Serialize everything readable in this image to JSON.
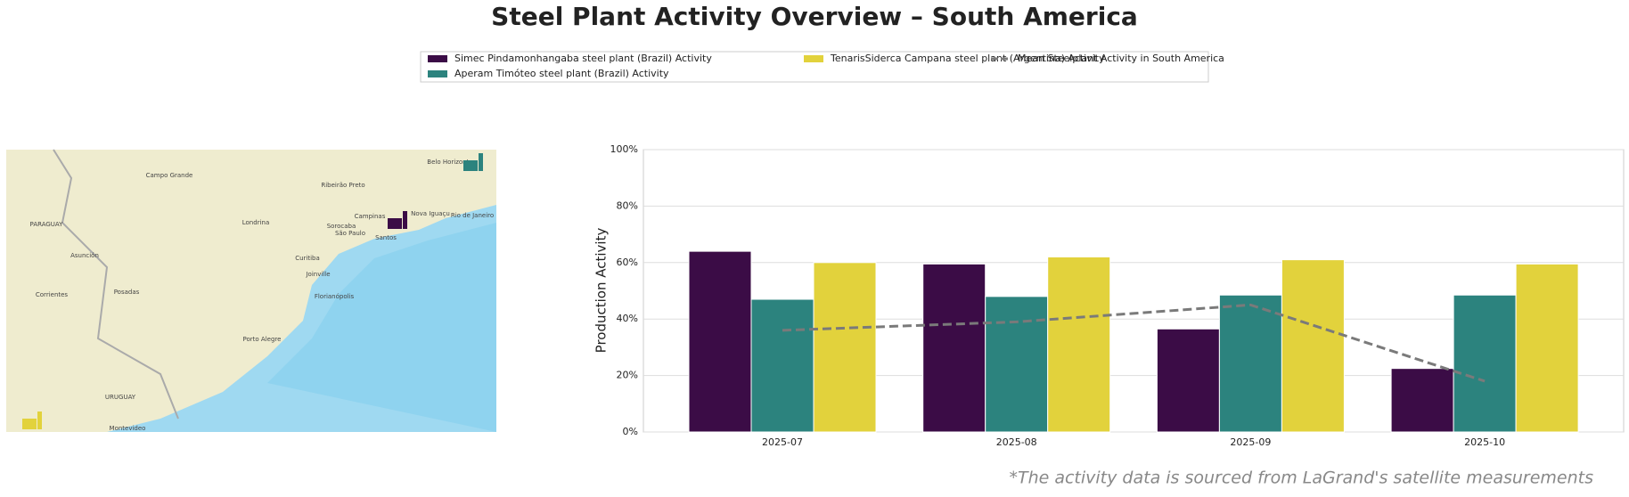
{
  "chart_data": {
    "type": "bar",
    "title": "Steel Plant Activity Overview – South America",
    "y_label": "Production Activity",
    "note": "*The activity data is sourced from LaGrand's satellite measurements",
    "categories": [
      "2025-07",
      "2025-08",
      "2025-09",
      "2025-10"
    ],
    "series": [
      {
        "name": "Simec Pindamonhangaba steel plant (Brazil) Activity",
        "color": "#3b0c46",
        "values": [
          64,
          59.5,
          36.5,
          22.5
        ]
      },
      {
        "name": "Aperam Timóteo steel plant (Brazil) Activity",
        "color": "#2c837e",
        "values": [
          47,
          48,
          48.5,
          48.5
        ]
      },
      {
        "name": "TenarisSiderca Campana steel plant (Argentina) Activity",
        "color": "#e2d23c",
        "values": [
          60,
          62,
          61,
          59.5
        ]
      },
      {
        "name": "Mean Steelplant Activity in South America",
        "color": "#7a7a7a",
        "type": "line",
        "values": [
          36,
          39,
          45,
          18
        ]
      }
    ],
    "ylim": [
      0,
      100
    ],
    "yticks": [
      {
        "value": 0,
        "label": "0%"
      },
      {
        "value": 20,
        "label": "20%"
      },
      {
        "value": 40,
        "label": "40%"
      },
      {
        "value": 60,
        "label": "60%"
      },
      {
        "value": 80,
        "label": "80%"
      },
      {
        "value": 100,
        "label": "100%"
      }
    ],
    "grid": true,
    "map_labels": [
      "Campo Grande",
      "Belo Horizonte",
      "Ribeirão Preto",
      "PARAGUAY",
      "Londrina",
      "Campinas",
      "Nova Iguaçu",
      "Rio de Janeiro",
      "Sorocaba",
      "São Paulo",
      "Santos",
      "Asunción",
      "Curitiba",
      "Joinville",
      "Corrientes",
      "Posadas",
      "Florianópolis",
      "Porto Alegre",
      "URUGUAY",
      "Montevideo"
    ]
  }
}
